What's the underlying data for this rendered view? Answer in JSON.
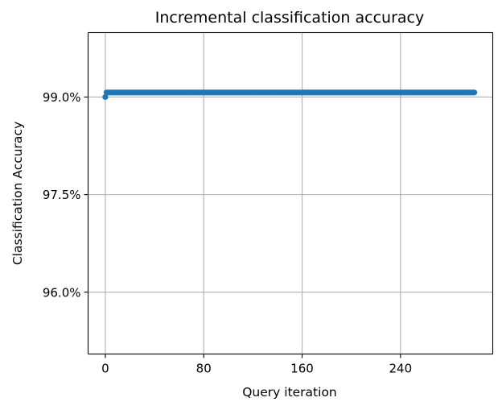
{
  "chart_data": {
    "type": "scatter",
    "title": "Incremental classification accuracy",
    "xlabel": "Query iteration",
    "ylabel": "Classification Accuracy",
    "xlim": [
      -14,
      315
    ],
    "ylim": [
      0.9505,
      0.9999
    ],
    "xticks": [
      0,
      80,
      160,
      240
    ],
    "xtick_labels": [
      "0",
      "80",
      "160",
      "240"
    ],
    "yticks": [
      0.96,
      0.975,
      0.99
    ],
    "ytick_labels": [
      "96.0%",
      "97.5%",
      "99.0%"
    ],
    "grid": true,
    "series": [
      {
        "color": "#1f77b4",
        "x_start": 0,
        "x_end": 300,
        "initial_value": 0.99,
        "value": 0.9907
      }
    ]
  }
}
